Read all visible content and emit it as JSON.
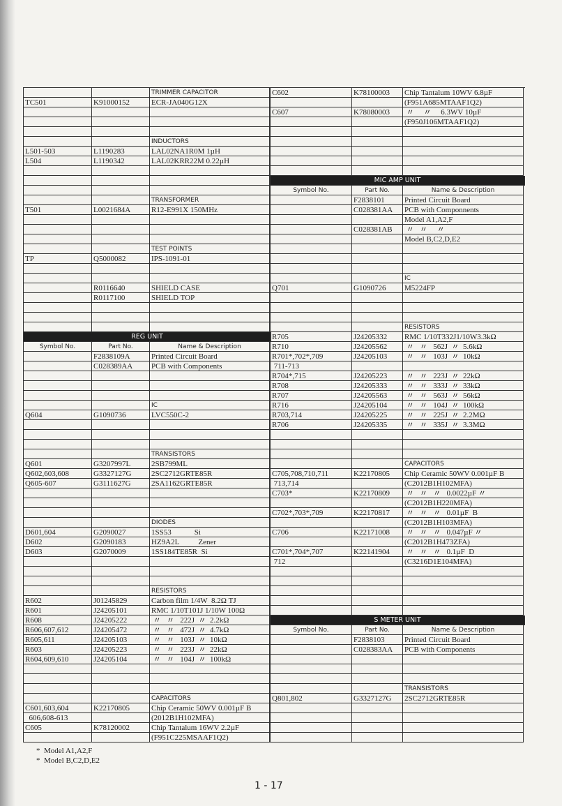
{
  "left": {
    "rows": [
      {
        "heading": "TRIMMER CAPACITOR"
      },
      {
        "symbol": "TC501",
        "part": "K91000152",
        "desc": "ECR-JA040G12X"
      },
      {},
      {},
      {},
      {
        "heading": "INDUCTORS"
      },
      {
        "symbol": "L501-503",
        "part": "L1190283",
        "desc": "LAL02NA1R0M 1µH"
      },
      {
        "symbol": "L504",
        "part": "L1190342",
        "desc": "LAL02KRR22M 0.22µH"
      },
      {},
      {},
      {},
      {
        "heading": "TRANSFORMER"
      },
      {
        "symbol": "T501",
        "part": "L0021684A",
        "desc": "R12-E991X 150MHz"
      },
      {},
      {},
      {},
      {
        "heading": "TEST POINTS"
      },
      {
        "symbol": "TP",
        "part": "Q5000082",
        "desc": "IPS-1091-01"
      },
      {},
      {},
      {
        "part": "R0116640",
        "desc": "SHIELD CASE"
      },
      {
        "part": "R0117100",
        "desc": "SHIELD TOP"
      },
      {},
      {},
      {},
      {
        "unit": "REG UNIT"
      },
      {
        "symbol": "Symbol No.",
        "part": "Part No.",
        "desc": "Name & Description"
      },
      {
        "part": "F2838109A",
        "desc": "Printed Circuit Board"
      },
      {
        "part": "C028389AA",
        "desc": "PCB with Components"
      },
      {},
      {},
      {},
      {
        "heading": "IC"
      },
      {
        "symbol": "Q604",
        "part": "G1090736",
        "desc": "LVC550C-2"
      },
      {},
      {},
      {},
      {
        "heading": "TRANSISTORS"
      },
      {
        "symbol": "Q601",
        "part": "G3207997L",
        "desc": "2SB799ML"
      },
      {
        "symbol": "Q602,603,608",
        "part": "G3327127G",
        "desc": "2SC2712GRTE85R"
      },
      {
        "symbol": "Q605-607",
        "part": "G3111627G",
        "desc": "2SA1162GRTE85R"
      },
      {},
      {},
      {},
      {
        "heading": "DIODES"
      },
      {
        "symbol": "D601,604",
        "part": "G2090027",
        "desc": "1SS53            Si"
      },
      {
        "symbol": "D602",
        "part": "G2090183",
        "desc": "HZ9A2L          Zener"
      },
      {
        "symbol": "D603",
        "part": "G2070009",
        "desc": "1SS184TE85R  Si"
      },
      {},
      {},
      {},
      {
        "heading": "RESISTORS"
      },
      {
        "symbol": "R602",
        "part": "J01245829",
        "desc": "Carbon film 1/4W  8.2Ω TJ"
      },
      {
        "symbol": "R601",
        "part": "J24205101",
        "desc": "RMC 1/10T101J 1/10W 100Ω"
      },
      {
        "symbol": "R608",
        "part": "J24205222",
        "desc": " 〃   〃   222J  〃  2.2kΩ"
      },
      {
        "symbol": "R606,607,612",
        "part": "J24205472",
        "desc": " 〃   〃   472J  〃  4.7kΩ"
      },
      {
        "symbol": "R605,611",
        "part": "J24205103",
        "desc": " 〃   〃   103J  〃  10kΩ"
      },
      {
        "symbol": "R603",
        "part": "J24205223",
        "desc": " 〃   〃   223J  〃  22kΩ"
      },
      {
        "symbol": "R604,609,610",
        "part": "J24205104",
        "desc": " 〃   〃   104J  〃  100kΩ"
      },
      {},
      {},
      {},
      {
        "heading": "CAPACITORS"
      },
      {
        "symbol": "C601,603,604",
        "part": "K22170805",
        "desc": "Chip Ceramic 50WV 0.001µF B"
      },
      {
        "symbol": "  606,608-613",
        "desc": "(2012B1H102MFA)"
      },
      {
        "symbol": "C605",
        "part": "K78120002",
        "desc": "Chip Tantalum 16WV 2.2µF"
      },
      {
        "desc": "(F951C225MSAAF1Q2)"
      }
    ]
  },
  "right": {
    "rows": [
      {
        "symbol": "C602",
        "part": "K78100003",
        "desc": "Chip Tantalum 10WV 6.8µF"
      },
      {
        "desc": "(F951A685MTAAF1Q2)"
      },
      {
        "symbol": "C607",
        "part": "K78080003",
        "desc": " 〃     〃     6.3WV 10µF"
      },
      {
        "desc": "(F950J106MTAAF1Q2)"
      },
      {},
      {},
      {},
      {},
      {},
      {
        "unit": "MIC AMP UNIT"
      },
      {
        "symbol": "Symbol No.",
        "part": "Part No.",
        "desc": "Name & Description"
      },
      {
        "part": "F2838101",
        "desc": "Printed Circuit Board"
      },
      {
        "part": "C028381AA",
        "desc": "PCB with Componnents"
      },
      {
        "desc": "Model A1,A2,F"
      },
      {
        "part": "C028381AB",
        "desc": " 〃   〃     〃"
      },
      {
        "desc": "Model B,C2,D,E2"
      },
      {},
      {},
      {},
      {
        "heading": "IC"
      },
      {
        "symbol": "Q701",
        "part": "G1090726",
        "desc": "M5224FP"
      },
      {},
      {},
      {},
      {
        "heading": "RESISTORS"
      },
      {
        "symbol": "R705",
        "part": "J24205332",
        "desc": "RMC 1/10T332J1/10W3.3kΩ"
      },
      {
        "symbol": "R710",
        "part": "J24205562",
        "desc": " 〃   〃   562J  〃  5.6kΩ"
      },
      {
        "symbol": "R701*,702*,709",
        "part": "J24205103",
        "desc": " 〃   〃   103J  〃  10kΩ"
      },
      {
        "symbol": " 711-713"
      },
      {
        "symbol": "R704*,715",
        "part": "J24205223",
        "desc": " 〃   〃   223J  〃  22kΩ"
      },
      {
        "symbol": "R708",
        "part": "J24205333",
        "desc": " 〃   〃   333J  〃  33kΩ"
      },
      {
        "symbol": "R707",
        "part": "J24205563",
        "desc": " 〃   〃   563J  〃  56kΩ"
      },
      {
        "symbol": "R716",
        "part": "J24205104",
        "desc": " 〃   〃   104J  〃  100kΩ"
      },
      {
        "symbol": "R703,714",
        "part": "J24205225",
        "desc": " 〃   〃   225J  〃  2.2MΩ"
      },
      {
        "symbol": "R706",
        "part": "J24205335",
        "desc": " 〃   〃   335J  〃  3.3MΩ"
      },
      {},
      {},
      {},
      {
        "heading": "CAPACITORS"
      },
      {
        "symbol": "C705,708,710,711",
        "part": "K22170805",
        "desc": "Chip Ceramic 50WV 0.001µF B"
      },
      {
        "symbol": " 713,714",
        "desc": "(C2012B1H102MFA)"
      },
      {
        "symbol": "C703*",
        "part": "K22170809",
        "desc": " 〃   〃   〃   0.0022µF 〃"
      },
      {
        "desc": "(C2012B1H220MFA)"
      },
      {
        "symbol": "C702*,703*,709",
        "part": "K22170817",
        "desc": " 〃   〃   〃   0.01µF  B"
      },
      {
        "desc": "(C2012B1H103MFA)"
      },
      {
        "symbol": "C706",
        "part": "K22171008",
        "desc": " 〃   〃   〃   0.047µF 〃"
      },
      {
        "desc": "(C2012B1H473ZFA)"
      },
      {
        "symbol": "C701*,704*,707",
        "part": "K22141904",
        "desc": " 〃   〃   〃   0.1µF  D"
      },
      {
        "symbol": " 712",
        "desc": "(C3216D1E104MFA)"
      },
      {},
      {},
      {},
      {},
      {},
      {
        "unit": "S METER UNIT"
      },
      {
        "symbol": "Symbol No.",
        "part": "Part No.",
        "desc": "Name & Description"
      },
      {
        "part": "F2838103",
        "desc": "Printed Circuit Board"
      },
      {
        "part": "C028383AA",
        "desc": "PCB with Components"
      },
      {},
      {},
      {},
      {
        "heading": "TRANSISTORS"
      },
      {
        "symbol": "Q801,802",
        "part": "G3327127G",
        "desc": "2SC2712GRTE85R"
      },
      {},
      {},
      {},
      {}
    ]
  },
  "notes": [
    "*  Model A1,A2,F",
    "*  Model B,C2,D,E2"
  ],
  "page_number": "1 - 17"
}
